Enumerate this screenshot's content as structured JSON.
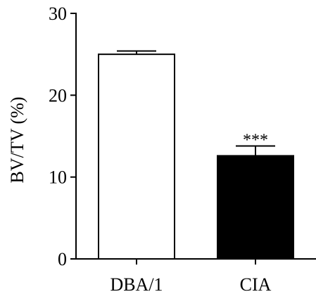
{
  "chart_data": {
    "type": "bar",
    "title": "",
    "xlabel": "",
    "ylabel": "BV/TV (%)",
    "ylim": [
      0,
      30
    ],
    "yticks": [
      0,
      10,
      20,
      30
    ],
    "grid": false,
    "categories": [
      "DBA/1",
      "CIA"
    ],
    "values": [
      25.0,
      12.6
    ],
    "errors": [
      0.4,
      1.2
    ],
    "bar_fills": [
      "#ffffff",
      "#000000"
    ],
    "bar_stroke": "#000000",
    "annotations": [
      {
        "category": "CIA",
        "text": "***"
      }
    ]
  }
}
